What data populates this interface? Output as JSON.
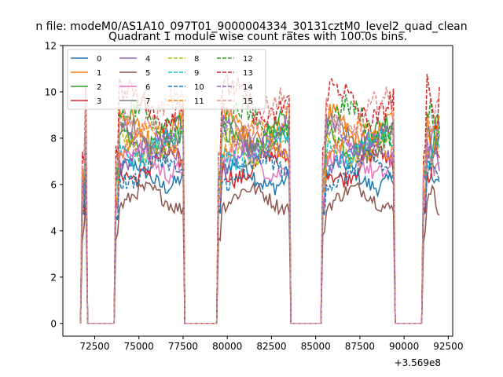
{
  "chart_data": {
    "type": "line",
    "suptitle": "n file: modeM0/AS1A10_097T01_9000004334_30131cztM0_level2_quad_clean",
    "title": "Quadrant 1 module wise count rates with 100.0s bins.",
    "xlabel": "",
    "ylabel": "",
    "x_offset_label": "+3.569e8",
    "xlim": [
      70700,
      92750
    ],
    "ylim": [
      -0.55,
      12.0
    ],
    "xticks": [
      72500,
      75000,
      77500,
      80000,
      82500,
      85000,
      87500,
      90000,
      92500
    ],
    "xtick_labels": [
      "72500",
      "75000",
      "77500",
      "80000",
      "82500",
      "85000",
      "87500",
      "90000",
      "92500"
    ],
    "yticks": [
      0,
      2,
      4,
      6,
      8,
      10,
      12
    ],
    "ytick_labels": [
      "0",
      "2",
      "4",
      "6",
      "8",
      "10",
      "12"
    ],
    "legend_position": "upper-left",
    "segments": [
      [
        71800,
        72000
      ],
      [
        73700,
        77500
      ],
      [
        79500,
        83500
      ],
      [
        85400,
        89400
      ],
      [
        91100,
        92000
      ]
    ],
    "series": [
      {
        "name": "0",
        "level": 6.4,
        "color": "#1f77b4",
        "dash": false
      },
      {
        "name": "1",
        "level": 8.4,
        "color": "#ff7f0e",
        "dash": false
      },
      {
        "name": "2",
        "level": 8.1,
        "color": "#2ca02c",
        "dash": false
      },
      {
        "name": "3",
        "level": 6.8,
        "color": "#d62728",
        "dash": false
      },
      {
        "name": "4",
        "level": 7.4,
        "color": "#9467bd",
        "dash": false
      },
      {
        "name": "5",
        "level": 5.4,
        "color": "#8c564b",
        "dash": false
      },
      {
        "name": "6",
        "level": 7.0,
        "color": "#e377c2",
        "dash": false
      },
      {
        "name": "7",
        "level": 8.0,
        "color": "#7f7f7f",
        "dash": false
      },
      {
        "name": "8",
        "level": 7.7,
        "color": "#bcbd22",
        "dash": true
      },
      {
        "name": "9",
        "level": 7.6,
        "color": "#17becf",
        "dash": true
      },
      {
        "name": "10",
        "level": 6.6,
        "color": "#1f77b4",
        "dash": true
      },
      {
        "name": "11",
        "level": 7.9,
        "color": "#ff7f0e",
        "dash": true
      },
      {
        "name": "12",
        "level": 8.7,
        "color": "#2ca02c",
        "dash": true
      },
      {
        "name": "13",
        "level": 9.5,
        "color": "#d62728",
        "dash": true
      },
      {
        "name": "14",
        "level": 8.0,
        "color": "#9467bd",
        "dash": true
      },
      {
        "name": "15",
        "level": 9.0,
        "color": "#e2908a",
        "dash": true
      }
    ]
  }
}
